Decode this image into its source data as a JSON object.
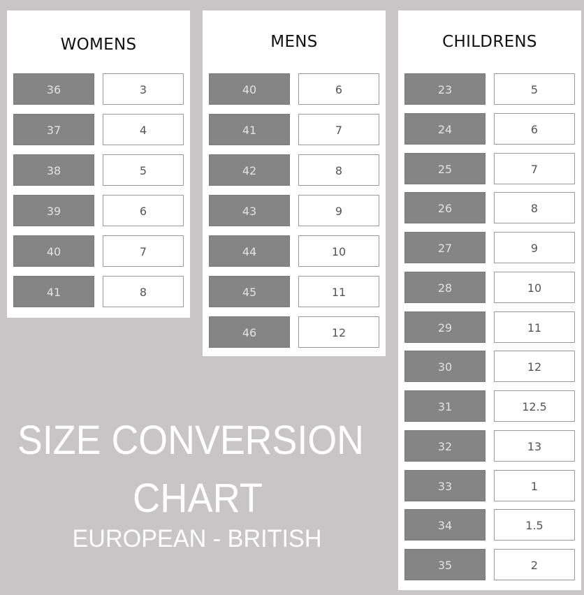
{
  "title": {
    "line1": "SIZE CONVERSION",
    "line2": "CHART",
    "subtitle": "EUROPEAN - BRITISH"
  },
  "colors": {
    "background": "#c7c5c6",
    "european_cell": "#858585",
    "british_cell": "#ffffff",
    "title_text": "#ffffff"
  },
  "chart_data": {
    "type": "table",
    "title": "SIZE CONVERSION CHART",
    "subtitle": "EUROPEAN - BRITISH",
    "tables": [
      {
        "name": "WOMENS",
        "european": [
          "36",
          "37",
          "38",
          "39",
          "40",
          "41"
        ],
        "british": [
          "3",
          "4",
          "5",
          "6",
          "7",
          "8"
        ]
      },
      {
        "name": "MENS",
        "european": [
          "40",
          "41",
          "42",
          "43",
          "44",
          "45",
          "46"
        ],
        "british": [
          "6",
          "7",
          "8",
          "9",
          "10",
          "11",
          "12"
        ]
      },
      {
        "name": "CHILDRENS",
        "european": [
          "23",
          "24",
          "25",
          "26",
          "27",
          "28",
          "29",
          "30",
          "31",
          "32",
          "33",
          "34",
          "35"
        ],
        "british": [
          "5",
          "6",
          "7",
          "8",
          "9",
          "10",
          "11",
          "12",
          "12.5",
          "13",
          "1",
          "1.5",
          "2"
        ]
      }
    ]
  }
}
